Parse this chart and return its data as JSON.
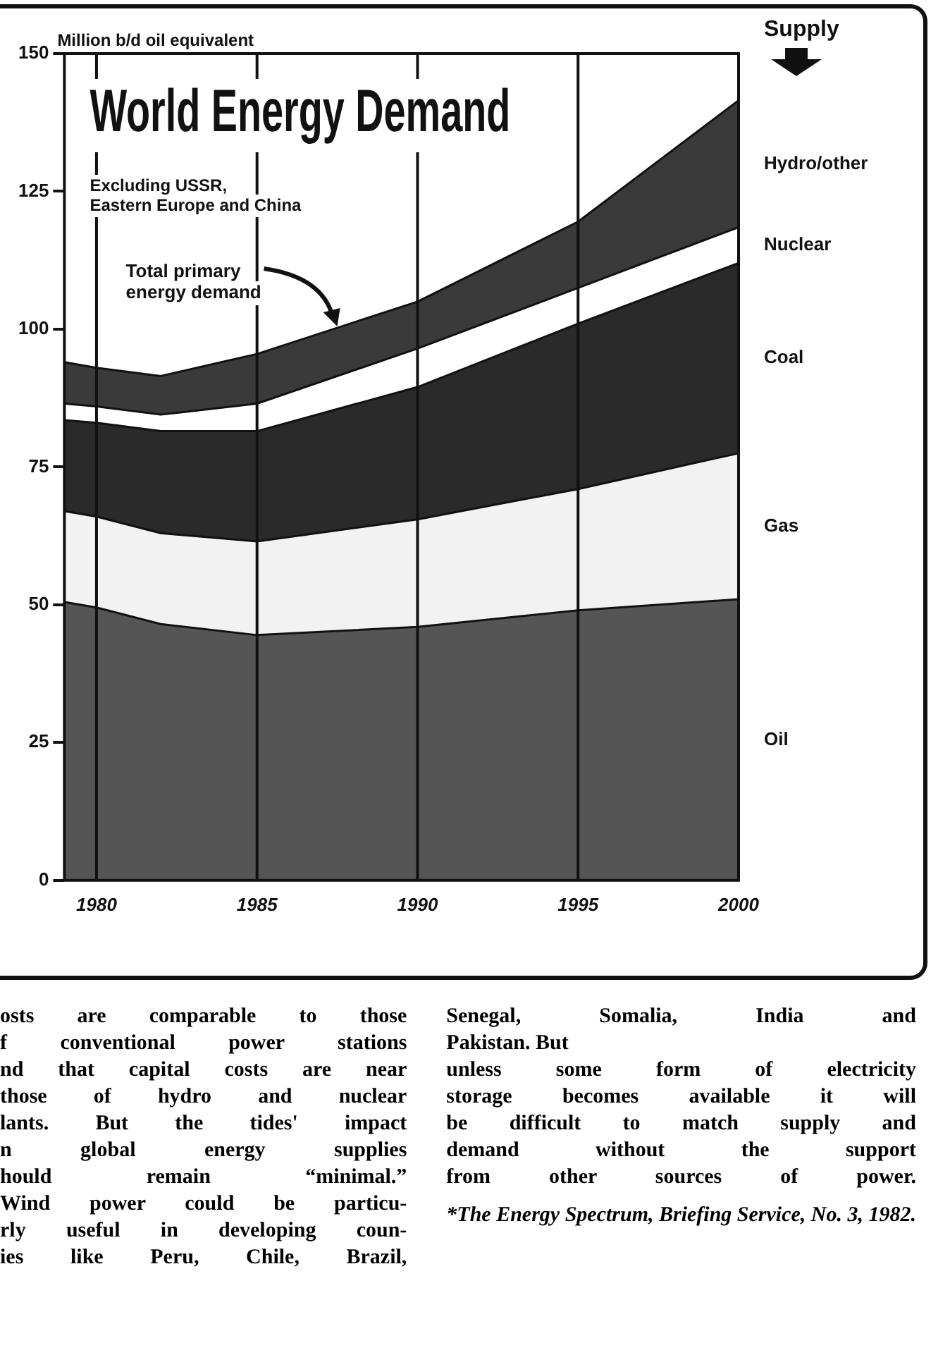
{
  "chart_data": {
    "type": "area",
    "stacked": true,
    "title": "World Energy Demand",
    "subtitle": "Excluding USSR,\nEastern Europe and China",
    "ylabel": "Million b/d oil equivalent",
    "legend_title": "Supply",
    "legend": false,
    "grid": "x",
    "x": [
      1979,
      1980,
      1982,
      1985,
      1990,
      1995,
      2000
    ],
    "xlim": [
      1979,
      2000
    ],
    "xticks": [
      1980,
      1985,
      1990,
      1995,
      2000
    ],
    "ylim": [
      0,
      150
    ],
    "yticks": [
      0,
      25,
      50,
      75,
      100,
      125,
      150
    ],
    "series": [
      {
        "name": "Oil",
        "color": "#555555",
        "values": [
          50.5,
          49.5,
          46.5,
          44.5,
          46,
          49,
          51
        ]
      },
      {
        "name": "Gas",
        "color": "#f2f2f2",
        "values": [
          16.5,
          16.5,
          16.5,
          17,
          19.5,
          22,
          26.5
        ]
      },
      {
        "name": "Coal",
        "color": "#2a2a2a",
        "values": [
          16.5,
          17,
          18.5,
          20,
          24,
          30,
          34.5
        ]
      },
      {
        "name": "Nuclear",
        "color": "#ffffff",
        "values": [
          3,
          3,
          3,
          5,
          7,
          6.5,
          6.5
        ]
      },
      {
        "name": "Hydro/other",
        "color": "#3a3a3a",
        "values": [
          7.5,
          7,
          7,
          9,
          8.5,
          12,
          23
        ]
      }
    ],
    "annotations": [
      {
        "text": "Total primary\nenergy demand",
        "x": 1987.5,
        "y": 100.5
      },
      "osts are comparable to those\nf conventional power stations\nnd that capital costs are near\nthose of hydro and nuclear\nlants. But the tides' impact\nn global energy supplies\nhould remain “minimal.”\nWind power could be particu-\nrly useful in developing coun-\nies like Peru, Chile, Brazil,",
      "Senegal, Somalia, India and\nPakistan. But\nunless some form of electricity\nstorage becomes available it will\nbe difficult to match supply and\ndemand without the support\nfrom other sources of power.",
      "*The Energy Spectrum, Briefing Service, No. 3, 1982."
    ]
  }
}
